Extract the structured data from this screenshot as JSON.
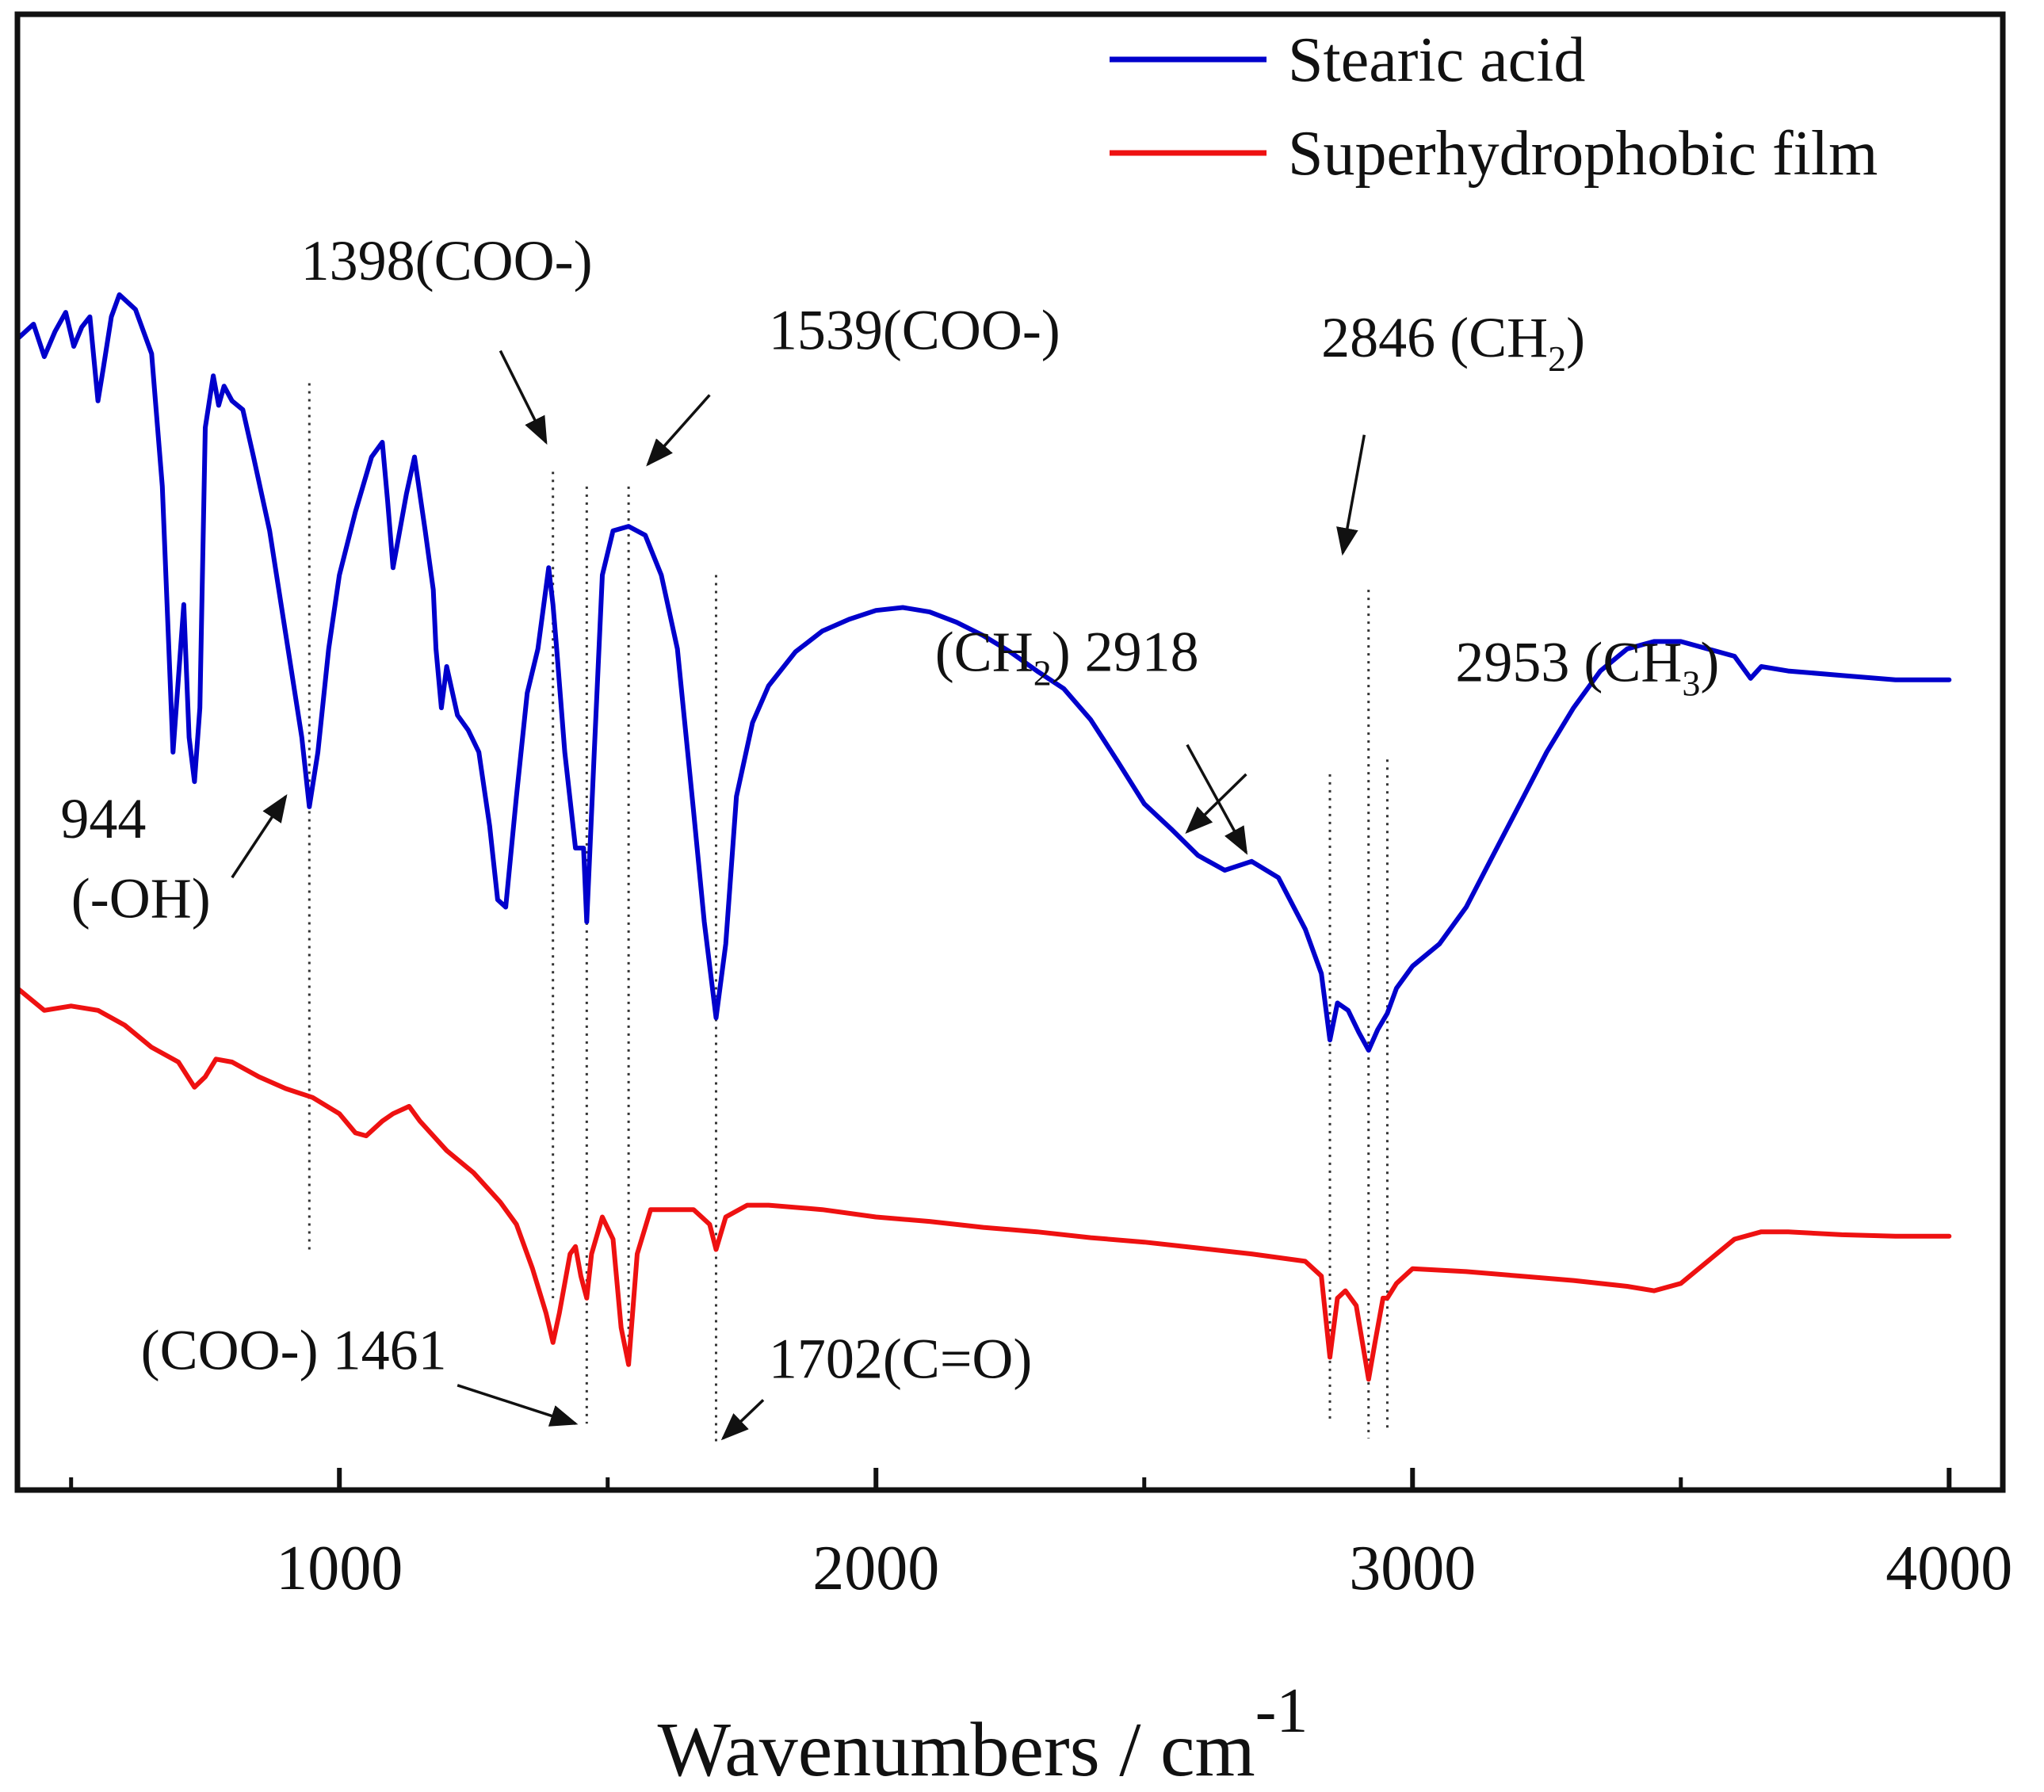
{
  "chart_data": {
    "type": "line",
    "title": "",
    "xlabel": "Wavenumbers / cm",
    "xlabel_superscript": "-1",
    "ylabel": "",
    "xlim": [
      400,
      4100
    ],
    "ylim": [
      0,
      100
    ],
    "xticks": [
      1000,
      2000,
      3000,
      4000
    ],
    "xticks_minor": [
      500,
      1500,
      2500,
      3500
    ],
    "legend_position": "top-right",
    "colors": {
      "blue": "#0000cc",
      "red": "#ee1111",
      "axis": "#111111",
      "guide": "#333333"
    },
    "series": [
      {
        "name": "Stearic acid",
        "color": "#0000cc",
        "points": [
          [
            400,
            78
          ],
          [
            430,
            79
          ],
          [
            450,
            76.8
          ],
          [
            470,
            78.5
          ],
          [
            490,
            79.8
          ],
          [
            505,
            77.5
          ],
          [
            520,
            78.8
          ],
          [
            535,
            79.5
          ],
          [
            550,
            73.8
          ],
          [
            560,
            76
          ],
          [
            575,
            79.5
          ],
          [
            590,
            81
          ],
          [
            620,
            80
          ],
          [
            650,
            77
          ],
          [
            670,
            68
          ],
          [
            690,
            50
          ],
          [
            700,
            55
          ],
          [
            710,
            60
          ],
          [
            720,
            51
          ],
          [
            730,
            48
          ],
          [
            740,
            53
          ],
          [
            750,
            72
          ],
          [
            765,
            75.5
          ],
          [
            775,
            73.5
          ],
          [
            785,
            74.8
          ],
          [
            800,
            73.8
          ],
          [
            820,
            73.2
          ],
          [
            840,
            70
          ],
          [
            870,
            65
          ],
          [
            900,
            58
          ],
          [
            930,
            51
          ],
          [
            944,
            46.3
          ],
          [
            960,
            50
          ],
          [
            980,
            57
          ],
          [
            1000,
            62
          ],
          [
            1030,
            66.3
          ],
          [
            1060,
            70
          ],
          [
            1080,
            71
          ],
          [
            1090,
            67
          ],
          [
            1100,
            62.5
          ],
          [
            1110,
            64.5
          ],
          [
            1125,
            67.5
          ],
          [
            1140,
            70
          ],
          [
            1160,
            65
          ],
          [
            1175,
            61
          ],
          [
            1180,
            57
          ],
          [
            1190,
            53
          ],
          [
            1200,
            55.8
          ],
          [
            1220,
            52.5
          ],
          [
            1240,
            51.5
          ],
          [
            1260,
            50
          ],
          [
            1280,
            45
          ],
          [
            1295,
            40
          ],
          [
            1310,
            39.5
          ],
          [
            1330,
            47
          ],
          [
            1350,
            54
          ],
          [
            1370,
            57
          ],
          [
            1390,
            62.5
          ],
          [
            1398,
            60
          ],
          [
            1405,
            57
          ],
          [
            1420,
            50
          ],
          [
            1440,
            43.5
          ],
          [
            1455,
            43.5
          ],
          [
            1461,
            38.5
          ],
          [
            1475,
            50
          ],
          [
            1490,
            62
          ],
          [
            1510,
            65
          ],
          [
            1539,
            65.3
          ],
          [
            1570,
            64.7
          ],
          [
            1600,
            62
          ],
          [
            1630,
            57
          ],
          [
            1660,
            46
          ],
          [
            1680,
            38.5
          ],
          [
            1702,
            32
          ],
          [
            1720,
            37
          ],
          [
            1740,
            47
          ],
          [
            1770,
            52
          ],
          [
            1800,
            54.5
          ],
          [
            1850,
            56.8
          ],
          [
            1900,
            58.2
          ],
          [
            1950,
            59
          ],
          [
            2000,
            59.6
          ],
          [
            2050,
            59.8
          ],
          [
            2100,
            59.5
          ],
          [
            2150,
            58.8
          ],
          [
            2200,
            57.9
          ],
          [
            2250,
            56.8
          ],
          [
            2300,
            55.5
          ],
          [
            2350,
            54.3
          ],
          [
            2400,
            52.2
          ],
          [
            2450,
            49.4
          ],
          [
            2500,
            46.5
          ],
          [
            2550,
            44.8
          ],
          [
            2600,
            43
          ],
          [
            2650,
            42
          ],
          [
            2700,
            42.6
          ],
          [
            2750,
            41.5
          ],
          [
            2800,
            38
          ],
          [
            2830,
            35
          ],
          [
            2846,
            30.5
          ],
          [
            2860,
            33
          ],
          [
            2880,
            32.5
          ],
          [
            2900,
            31
          ],
          [
            2918,
            29.8
          ],
          [
            2935,
            31.2
          ],
          [
            2953,
            32.3
          ],
          [
            2970,
            34
          ],
          [
            3000,
            35.5
          ],
          [
            3050,
            37
          ],
          [
            3100,
            39.5
          ],
          [
            3150,
            43
          ],
          [
            3200,
            46.5
          ],
          [
            3250,
            50
          ],
          [
            3300,
            53
          ],
          [
            3350,
            55.5
          ],
          [
            3400,
            57
          ],
          [
            3450,
            57.5
          ],
          [
            3500,
            57.5
          ],
          [
            3550,
            57
          ],
          [
            3600,
            56.5
          ],
          [
            3630,
            55
          ],
          [
            3650,
            55.8
          ],
          [
            3700,
            55.5
          ],
          [
            3800,
            55.2
          ],
          [
            3900,
            54.9
          ],
          [
            4000,
            54.9
          ]
        ]
      },
      {
        "name": "Superhydrophobic film",
        "color": "#ee1111",
        "points": [
          [
            400,
            34
          ],
          [
            450,
            32.5
          ],
          [
            500,
            32.8
          ],
          [
            550,
            32.5
          ],
          [
            600,
            31.5
          ],
          [
            650,
            30
          ],
          [
            700,
            29
          ],
          [
            730,
            27.3
          ],
          [
            750,
            28
          ],
          [
            770,
            29.2
          ],
          [
            800,
            29
          ],
          [
            850,
            28
          ],
          [
            900,
            27.2
          ],
          [
            950,
            26.6
          ],
          [
            1000,
            25.5
          ],
          [
            1030,
            24.2
          ],
          [
            1050,
            24
          ],
          [
            1080,
            25
          ],
          [
            1100,
            25.5
          ],
          [
            1130,
            26
          ],
          [
            1150,
            25
          ],
          [
            1200,
            23
          ],
          [
            1250,
            21.5
          ],
          [
            1300,
            19.5
          ],
          [
            1330,
            18
          ],
          [
            1360,
            15
          ],
          [
            1385,
            12
          ],
          [
            1398,
            10
          ],
          [
            1410,
            12
          ],
          [
            1430,
            16
          ],
          [
            1440,
            16.5
          ],
          [
            1450,
            14.5
          ],
          [
            1461,
            13
          ],
          [
            1470,
            16
          ],
          [
            1490,
            18.5
          ],
          [
            1510,
            17
          ],
          [
            1525,
            11
          ],
          [
            1539,
            8.5
          ],
          [
            1555,
            16
          ],
          [
            1580,
            19
          ],
          [
            1620,
            19
          ],
          [
            1660,
            19
          ],
          [
            1690,
            18
          ],
          [
            1702,
            16.3
          ],
          [
            1720,
            18.5
          ],
          [
            1760,
            19.3
          ],
          [
            1800,
            19.3
          ],
          [
            1900,
            19
          ],
          [
            2000,
            18.5
          ],
          [
            2100,
            18.2
          ],
          [
            2200,
            17.8
          ],
          [
            2300,
            17.5
          ],
          [
            2400,
            17.1
          ],
          [
            2500,
            16.8
          ],
          [
            2600,
            16.4
          ],
          [
            2700,
            16
          ],
          [
            2800,
            15.5
          ],
          [
            2830,
            14.5
          ],
          [
            2846,
            9
          ],
          [
            2860,
            13
          ],
          [
            2875,
            13.5
          ],
          [
            2895,
            12.5
          ],
          [
            2918,
            7.5
          ],
          [
            2930,
            10
          ],
          [
            2945,
            13
          ],
          [
            2953,
            13
          ],
          [
            2970,
            14
          ],
          [
            3000,
            15
          ],
          [
            3100,
            14.8
          ],
          [
            3200,
            14.5
          ],
          [
            3300,
            14.2
          ],
          [
            3400,
            13.8
          ],
          [
            3450,
            13.5
          ],
          [
            3500,
            14
          ],
          [
            3550,
            15.5
          ],
          [
            3600,
            17
          ],
          [
            3650,
            17.5
          ],
          [
            3700,
            17.5
          ],
          [
            3800,
            17.3
          ],
          [
            3900,
            17.2
          ],
          [
            4000,
            17.2
          ]
        ]
      }
    ],
    "guide_lines": [
      {
        "x": 944,
        "y_top": 75,
        "y_bottom": 16
      },
      {
        "x": 1398,
        "y_top": 69,
        "y_bottom": 13
      },
      {
        "x": 1461,
        "y_top": 68,
        "y_bottom": 4.5
      },
      {
        "x": 1539,
        "y_top": 68,
        "y_bottom": 10
      },
      {
        "x": 1702,
        "y_top": 62,
        "y_bottom": 3
      },
      {
        "x": 2846,
        "y_top": 48.5,
        "y_bottom": 4.5
      },
      {
        "x": 2918,
        "y_top": 61,
        "y_bottom": 3.5
      },
      {
        "x": 2953,
        "y_top": 49.5,
        "y_bottom": 4
      }
    ],
    "annotations": [
      {
        "label": "944",
        "sub": "",
        "suffix": "",
        "text_x": 560,
        "text_y": 44.2,
        "anchor": "middle",
        "arrow": [
          [
            800,
            41.5
          ],
          [
            900,
            47
          ]
        ]
      },
      {
        "label": "(-OH)",
        "sub": "",
        "suffix": "",
        "text_x": 630,
        "text_y": 38.8,
        "anchor": "middle",
        "arrow": null
      },
      {
        "label": "1398(COO-)",
        "sub": "",
        "suffix": "",
        "text_x": 1200,
        "text_y": 82,
        "anchor": "middle",
        "arrow": [
          [
            1300,
            77.2
          ],
          [
            1385,
            71
          ]
        ]
      },
      {
        "label": "1539(COO-)",
        "sub": "",
        "suffix": "",
        "text_x": 1800,
        "text_y": 77.3,
        "anchor": "start",
        "arrow": [
          [
            1690,
            74.2
          ],
          [
            1575,
            69.5
          ]
        ]
      },
      {
        "label": "2846 (CH",
        "sub": "2",
        "suffix": ")",
        "text_x": 2830,
        "text_y": 76.8,
        "anchor": "start",
        "arrow": [
          [
            2910,
            71.5
          ],
          [
            2870,
            63.5
          ]
        ]
      },
      {
        "label": "(CH",
        "sub": "2",
        "suffix": ") 2918",
        "text_x": 2110,
        "text_y": 55.5,
        "anchor": "start",
        "arrow": [
          [
            2580,
            50.5
          ],
          [
            2690,
            43.2
          ]
        ]
      },
      {
        "label": "2953 (CH",
        "sub": "3",
        "suffix": ")",
        "text_x": 3080,
        "text_y": 54.8,
        "anchor": "start",
        "arrow": [
          [
            2690,
            48.5
          ],
          [
            2580,
            44.6
          ]
        ]
      },
      {
        "label": "(COO-) 1461",
        "sub": "",
        "suffix": "",
        "text_x": 1200,
        "text_y": 8.2,
        "anchor": "end",
        "arrow": [
          [
            1220,
            7.1
          ],
          [
            1440,
            4.5
          ]
        ]
      },
      {
        "label": "1702(C=O)",
        "sub": "",
        "suffix": "",
        "text_x": 1800,
        "text_y": 7.6,
        "anchor": "start",
        "arrow": [
          [
            1790,
            6.1
          ],
          [
            1715,
            3.5
          ]
        ]
      }
    ]
  }
}
